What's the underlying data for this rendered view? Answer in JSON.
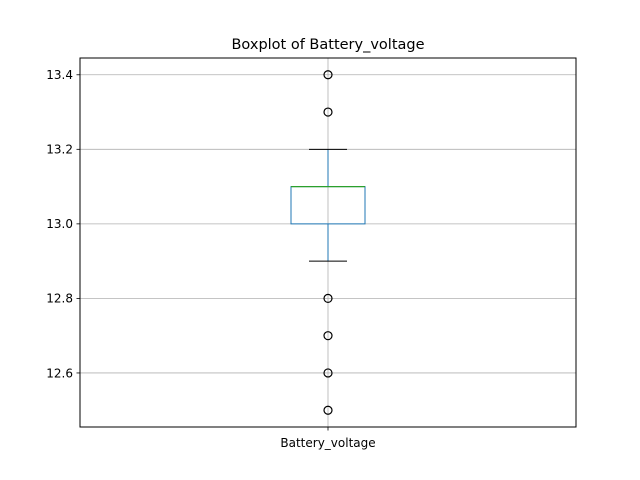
{
  "chart_data": {
    "type": "box",
    "title": "Boxplot of Battery_voltage",
    "categories": [
      "Battery_voltage"
    ],
    "xlabel": "",
    "ylabel": "",
    "ylim": [
      12.455,
      13.445
    ],
    "y_ticks": [
      12.6,
      12.8,
      13.0,
      13.2,
      13.4
    ],
    "y_tick_labels": [
      "12.6",
      "12.8",
      "13.0",
      "13.2",
      "13.4"
    ],
    "grid": true,
    "box": {
      "q1": 13.0,
      "median": 13.1,
      "q3": 13.1,
      "whisker_low": 12.9,
      "whisker_high": 13.2,
      "outliers": [
        13.4,
        13.3,
        12.8,
        12.7,
        12.6,
        12.5
      ]
    },
    "colors": {
      "box": "#1f77b4",
      "median": "#2ca02c",
      "caps": "#000000",
      "grid": "#b0b0b0",
      "outlier_edge": "#000000"
    }
  }
}
